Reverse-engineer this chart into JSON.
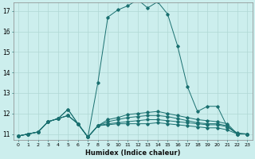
{
  "xlabel": "Humidex (Indice chaleur)",
  "xlim": [
    -0.5,
    23.5
  ],
  "ylim": [
    10.7,
    17.4
  ],
  "yticks": [
    11,
    12,
    13,
    14,
    15,
    16,
    17
  ],
  "xticks": [
    0,
    1,
    2,
    3,
    4,
    5,
    6,
    7,
    8,
    9,
    10,
    11,
    12,
    13,
    14,
    15,
    16,
    17,
    18,
    19,
    20,
    21,
    22,
    23
  ],
  "background_color": "#cceeed",
  "grid_color": "#b0d8d4",
  "line_color": "#1a7070",
  "lines": [
    [
      10.9,
      11.0,
      11.1,
      11.6,
      11.75,
      12.2,
      11.5,
      10.85,
      13.5,
      16.7,
      17.05,
      17.25,
      17.55,
      17.15,
      17.45,
      16.85,
      15.3,
      13.3,
      12.1,
      12.35,
      12.35,
      11.35,
      11.05,
      11.0
    ],
    [
      10.9,
      11.0,
      11.1,
      11.6,
      11.75,
      12.2,
      11.5,
      10.85,
      11.4,
      11.45,
      11.5,
      11.5,
      11.5,
      11.5,
      11.55,
      11.5,
      11.45,
      11.4,
      11.35,
      11.3,
      11.3,
      11.2,
      11.0,
      11.0
    ],
    [
      10.9,
      11.0,
      11.1,
      11.6,
      11.75,
      11.9,
      11.5,
      10.85,
      11.4,
      11.5,
      11.55,
      11.6,
      11.65,
      11.7,
      11.7,
      11.65,
      11.6,
      11.55,
      11.5,
      11.45,
      11.45,
      11.35,
      11.0,
      11.0
    ],
    [
      10.9,
      11.0,
      11.1,
      11.6,
      11.75,
      11.9,
      11.5,
      10.85,
      11.4,
      11.6,
      11.7,
      11.8,
      11.85,
      11.9,
      11.9,
      11.85,
      11.75,
      11.65,
      11.55,
      11.5,
      11.5,
      11.4,
      11.0,
      11.0
    ],
    [
      10.9,
      11.0,
      11.1,
      11.6,
      11.75,
      11.9,
      11.5,
      10.85,
      11.4,
      11.7,
      11.8,
      11.95,
      12.0,
      12.05,
      12.1,
      12.0,
      11.9,
      11.8,
      11.7,
      11.65,
      11.6,
      11.5,
      11.0,
      11.0
    ]
  ]
}
